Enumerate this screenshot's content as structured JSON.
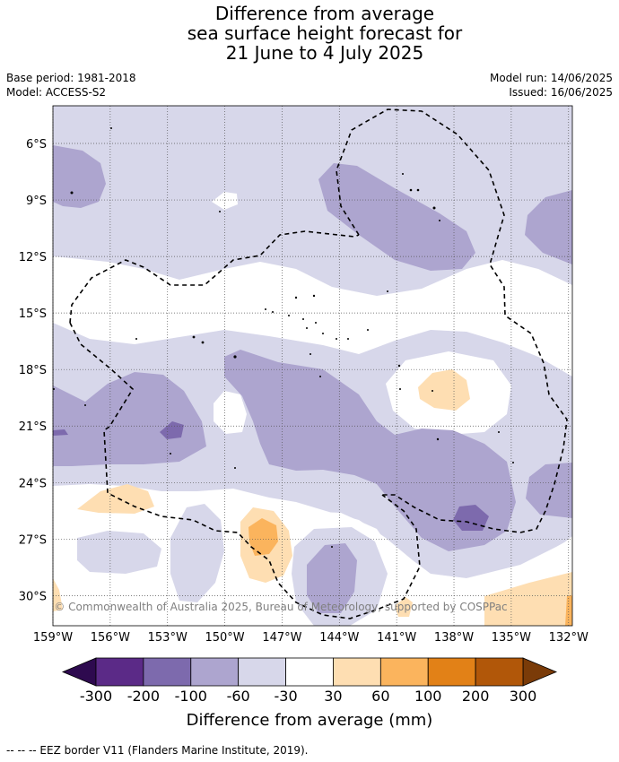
{
  "title": {
    "line1": "Difference from average",
    "line2": "sea surface height forecast for",
    "line3": "21 June to 4 July 2025"
  },
  "meta": {
    "base_period": "Base period: 1981-2018",
    "model": "Model: ACCESS-S2",
    "model_run": "Model run: 14/06/2025",
    "issued": "Issued: 16/06/2025"
  },
  "map": {
    "lat_labels": [
      "6°S",
      "9°S",
      "12°S",
      "15°S",
      "18°S",
      "21°S",
      "24°S",
      "27°S",
      "30°S"
    ],
    "lon_labels": [
      "159°W",
      "156°W",
      "153°W",
      "150°W",
      "147°W",
      "144°W",
      "141°W",
      "138°W",
      "135°W",
      "132°W"
    ],
    "lat_values": [
      -6,
      -9,
      -12,
      -15,
      -18,
      -21,
      -24,
      -27,
      -30
    ],
    "lon_values": [
      -159,
      -156,
      -153,
      -150,
      -147,
      -144,
      -141,
      -138,
      -135,
      -132
    ],
    "lat_range": [
      -31.6,
      -4.0
    ],
    "lon_range": [
      -159.0,
      -131.8
    ],
    "copyright": "© Commonwealth of Australia 2025, Bureau of Meteorology, supported by COSPPac",
    "grid": true
  },
  "colorbar": {
    "title": "Difference from average (mm)",
    "labels": [
      "-300",
      "-200",
      "-100",
      "-60",
      "-30",
      "30",
      "60",
      "100",
      "200",
      "300"
    ],
    "colors": {
      "under": "#2e0a4f",
      "neg300_200": "#5b2a87",
      "neg200_100": "#7d6aad",
      "neg100_60": "#ada5cf",
      "neg60_30": "#d7d7ea",
      "neutral": "#ffffff",
      "pos30_60": "#fedeb2",
      "pos60_100": "#fbb45d",
      "pos100_200": "#e28117",
      "pos200_300": "#b15709",
      "over": "#7a3b08"
    }
  },
  "footer": "--  --  -- EEZ border V11 (Flanders Marine Institute, 2019)."
}
